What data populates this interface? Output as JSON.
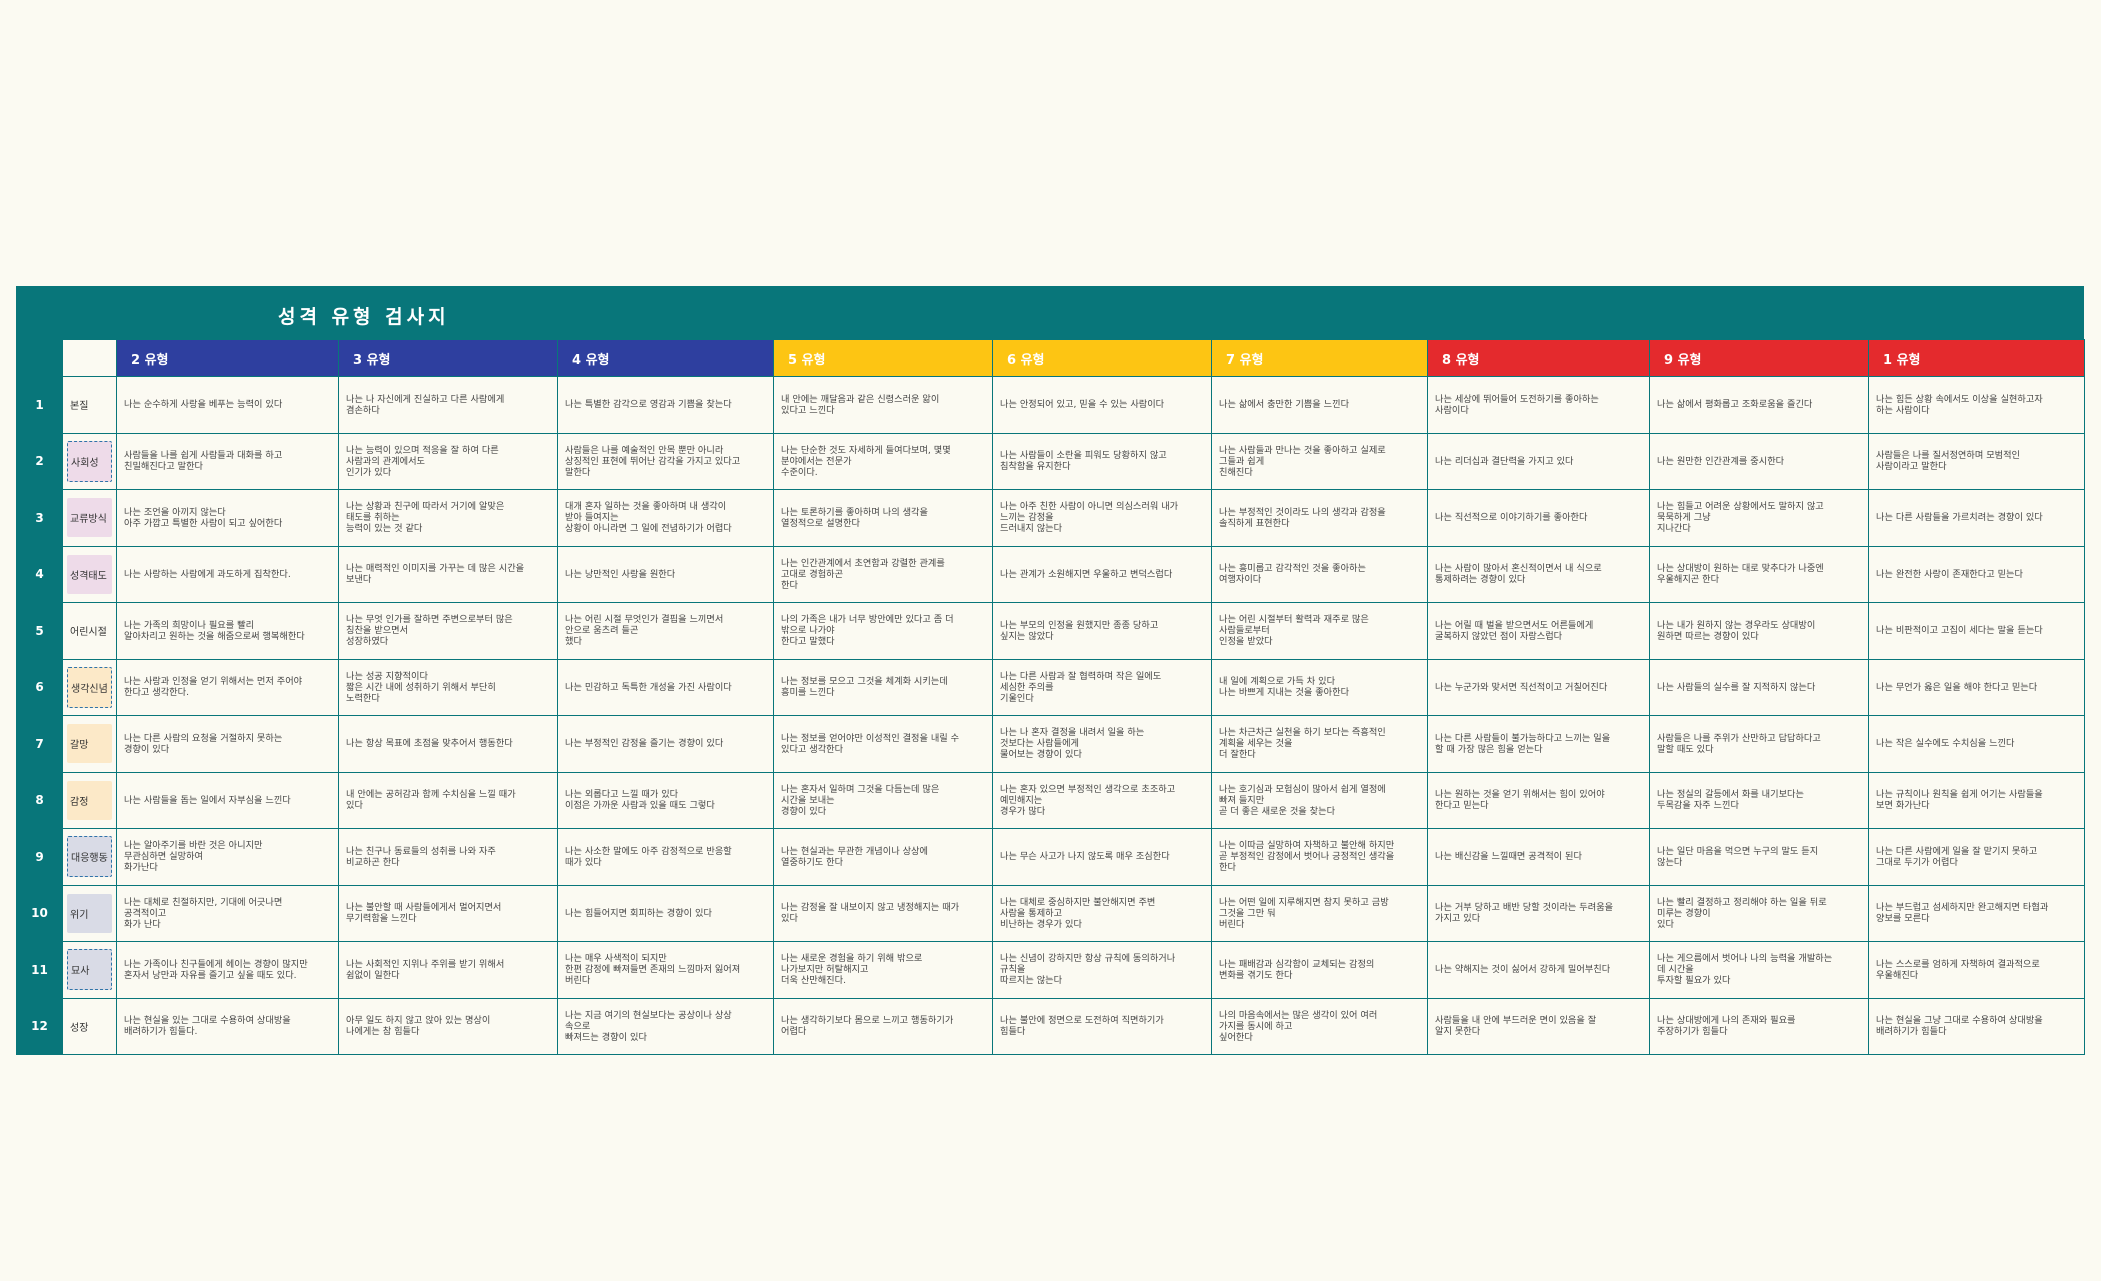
{
  "title": "성격 유형 검사지",
  "columns": [
    {
      "label": "2 유형",
      "color": "#2e3f9f"
    },
    {
      "label": "3 유형",
      "color": "#2e3f9f"
    },
    {
      "label": "4 유형",
      "color": "#2e3f9f"
    },
    {
      "label": "5 유형",
      "color": "#fdc513"
    },
    {
      "label": "6 유형",
      "color": "#fdc513"
    },
    {
      "label": "7 유형",
      "color": "#fdc513"
    },
    {
      "label": "8 유형",
      "color": "#e42a2d"
    },
    {
      "label": "9 유형",
      "color": "#e42a2d"
    },
    {
      "label": "1 유형",
      "color": "#e42a2d"
    }
  ],
  "rows": [
    {
      "num": "1",
      "category": "본질",
      "cells": [
        "나는 순수하게 사랑을 베푸는 능력이 있다",
        " 나는 나 자신에게 진실하고 다른 사람에게 \n겸손하다",
        "나는 특별한 감각으로 영감과 기쁨을 찾는다",
        " 내 안에는 깨달음과 같은 신령스러운 앎이 \n있다고 느낀다",
        "나는 안정되어 있고, 믿을 수 있는 사람이다",
        "나는 삶에서 충만한 기쁨을 느낀다",
        " 나는 세상에 뛰어들어 도전하기를 좋아하는 \n사람이다",
        "나는 삶에서 평화롭고 조화로움을 즐긴다",
        " 나는 힘든 상황 속에서도 이상을 실현하고자 \n하는 사람이다"
      ]
    },
    {
      "num": "2",
      "category": "사회성",
      "cells": [
        " 사람들을 나를 쉽게 사람들과 대화를 하고 \n친밀해진다고 말한다",
        " 나는 능력이 있으며 적응을 잘 하여 다른 \n사람과의 관계에서도 \n인기가 있다",
        " 사람들은 나를 예술적인 안목 뿐만 아니라 \n상징적인 표현에 뛰어난 감각을 가지고 있다고 \n말한다",
        " 나는 단순한 것도 자세하게 들여다보며, 몇몇 \n분야에서는 전문가 \n수준이다.",
        " 나는 사람들이 소란을 피워도 당황하지 않고 \n침착함을 유지한다",
        " 나는 사람들과 만나는 것을 좋아하고 실제로 \n그들과 쉽게 \n친해진다",
        "나는 리더십과 결단력을 가지고 있다",
        "나는 원만한 인간관계를 중시한다",
        " 사람들은 나를 질서정연하며 모범적인 \n사람이라고 말한다"
      ]
    },
    {
      "num": "3",
      "category": "교류방식",
      "cells": [
        "나는 조언을 아끼지 않는다\n아주 가깝고 특별한 사람이 되고 싶어한다",
        " 나는 상황과 친구에 따라서 거기에 알맞은 \n태도를 취하는 \n능력이 있는 것 같다",
        " 대개 혼자 일하는 것을 좋아하며 내 생각이 \n받아 들여지는 \n상황이 아니라면 그 일에 전념하기가 어렵다",
        " 나는 토론하기를 좋아하며 나의 생각을 \n열정적으로 설명한다",
        " 나는 아주 친한 사람이 아니면 의심스러워 내가 \n느끼는 감정을 \n드러내지 않는다",
        " 나는 부정적인 것이라도 나의 생각과 감정을 \n솔직하게 표현한다",
        "나는 직선적으로 이야기하기를 좋아한다",
        " 나는 힘들고 어려운 상황에서도 말하지 않고 \n묵묵하게 그냥 \n지나간다",
        "나는 다른 사람들을 가르치려는 경향이 있다"
      ]
    },
    {
      "num": "4",
      "category": "성격태도",
      "cells": [
        "나는 사랑하는 사람에게 과도하게 집착한다.",
        " 나는 매력적인 이미지를 가꾸는 데 많은 시간을 \n보낸다",
        "나는 낭만적인 사랑을 원한다",
        " 나는 인간관계에서 초연함과 강렬한 관계를 \n고대로 경험하곤 \n한다",
        "나는 관계가 소원해지면 우울하고 변덕스럽다",
        " 나는 흥미롭고 감각적인 것을 좋아하는 \n여행자이다",
        " 나는 사람이 많아서 혼신적이면서 내 식으로 \n통제하려는 경향이 있다",
        " 나는 상대방이 원하는 대로 맞추다가 나중엔 \n우울해지곤 한다",
        "나는 완전한 사랑이 존재한다고 믿는다"
      ]
    },
    {
      "num": "5",
      "category": "어린시절",
      "cells": [
        "나는 가족의 희망이나 필요를 빨리 \n알아차리고 원하는 것을 해줌으로써 행복해한다",
        " 나는 무엇 인가를 잘하면 주변으로부터 많은 \n칭찬을 받으면서 \n성장하였다",
        " 나는 어린 시절 무엇인가 결핍을 느끼면서 \n안으로 움츠려 들곤 \n했다",
        " 나의 가족은 내가 너무 방안에만 있다고 좀 더 \n밖으로 나가야 \n한다고 말했다",
        " 나는 부모의 인정을 원했지만 종종 당하고 \n싶지는 않았다",
        " 나는 어린 시절부터 활력과 재주로 많은 \n사람들로부터 \n인정을 받았다",
        " 나는 어릴 때 벌을 받으면서도 어른들에게 \n굴복하지 않았던 점이 자랑스럽다",
        " 나는 내가 원하지 않는 경우라도 상대방이 \n원하면 따르는 경향이 있다",
        "나는 비판적이고 고집이 세다는 말을 듣는다"
      ]
    },
    {
      "num": "6",
      "category": "생각신념",
      "cells": [
        "나는 사랑과 인정을 얻기 위해서는 먼저 주어야 \n한다고 생각한다.",
        " 나는 성공 지향적이다 \n짧은 시간 내에 성취하기 위해서 부단히 \n노력한다",
        "나는 민감하고 독특한 개성을 가진 사람이다",
        "나는 정보를 모으고 그것을 체계화 시키는데 \n흥미를 느낀다",
        " 나는 다른 사람과 잘 협력하며 작은 일에도 \n세심한 주의를 \n기울인다",
        " 내 일에 계획으로 가득 차 있다 \n나는 바쁘게 지내는 것을 좋아한다",
        "나는 누군가와 맞서면 직선적이고 거칠어진다",
        " 나는 사람들의 실수를 잘 지적하지 않는다",
        "나는 무언가 옳은 일을 해야 한다고 믿는다"
      ]
    },
    {
      "num": "7",
      "category": "갈망",
      "cells": [
        "나는 다른 사람의 요청을 거절하지 못하는 \n경향이 있다",
        " 나는 항상 목표에 초점을 맞추어서 행동한다",
        "나는 부정적인 감정을 즐기는 경향이 있다",
        "나는 정보를 얻어야만 이성적인 결정을 내릴 수 \n있다고 생각한다",
        " 나는 나 혼자 결정을 내려서 일을 하는 \n것보다는 사람들에게 \n물어보는 경향이 있다",
        " 나는 차근차근 실천을 하기 보다는 즉흥적인 \n계획을 세우는 것을 \n더 잘한다",
        " 나는 다른 사람들이 불가능하다고 느끼는 일을 \n할 때 가장 많은 힘을 얻는다",
        " 사람들은 나를 주위가 산만하고 답답하다고 \n말할 때도 있다",
        "나는 작은 실수에도 수치심을 느낀다"
      ]
    },
    {
      "num": "8",
      "category": "감정",
      "cells": [
        "나는 사람들을 돕는 일에서 자부심을 느낀다",
        " 내 안에는 공허감과 함께 수치심을 느낄 때가 \n있다",
        " 나는 외롭다고 느낄 때가 있다 \n이점은 가까운 사람과 있을 때도 그렇다",
        " 나는 혼자서 일하며 그것을 다듬는데 많은 \n시간을 보내는 \n경향이 있다",
        " 나는 혼자 있으면 부정적인 생각으로 초조하고 \n예민해지는 \n경우가 많다",
        " 나는 호기심과 모험심이 많아서 쉽게 열정에 \n빠져 들지만 \n곧 더 좋은 새로운 것을 찾는다",
        " 나는 원하는 것을 얻기 위해서는 힘이 있어야 \n한다고 믿는다",
        " 나는 정실의 갈등에서 화를 내기보다는 \n두목감을 자주 느낀다",
        " 나는 규칙이나 원칙을 쉽게 어기는 사람들을 \n보면 화가난다"
      ]
    },
    {
      "num": "9",
      "category": "대응행동",
      "cells": [
        "나는 알아주기를 바란 것은 아니지만 \n무관심하면 실망하여 \n화가난다",
        " 나는 친구나 동료들의 성취를 나와 자주 \n비교하곤 한다",
        " 나는 사소한 말에도 아주 감정적으로 반응할 \n때가 있다",
        " 나는 현실과는 무관한 개념이나 상상에 \n열중하기도 한다",
        "나는 무슨 사고가 나지 않도록 매우 조심한다",
        " 나는 이따금 실망하여 자책하고 불안해 하지만 \n곧 부정적인 감정에서 벗어나 긍정적인 생각을 \n한다",
        "나는 배신감을 느낄때면 공격적이 된다",
        " 나는 일단 마음을 먹으면 누구의 말도 듣지 \n않는다",
        " 나는 다른 사람에게 일을 잘 맡기지 못하고 \n그대로 두기가 어렵다"
      ]
    },
    {
      "num": "10",
      "category": "위기",
      "cells": [
        "나는 대체로 친절하지만, 기대에 어긋나면 \n공격적이고 \n화가 난다",
        " 나는 불안할 때 사람들에게서 멀어지면서 \n무기력함을 느낀다",
        "나는 힘들어지면 회피하는 경향이 있다",
        "나는 감정을 잘 내보이지 않고 냉정해지는 때가 \n있다",
        " 나는 대체로 중심하지만 불안해지면 주변 \n사람을 통제하고 \n비난하는 경우가 있다",
        " 나는 어떤 일에 지루해지면 참지 못하고 금방 \n그것을 그만 둬 \n버린다",
        " 나는 거부 당하고 배반 당할 것이라는 두려움을 \n가지고 있다",
        " 나는 빨리 결정하고 정리해야 하는 일을 뒤로 \n미루는 경향이 \n있다",
        " 나는 부드럽고 섬세하지만 완고해지면 타협과 \n양보를 모른다"
      ]
    },
    {
      "num": "11",
      "category": "묘사",
      "cells": [
        "나는 가족이나 친구들에게 헤이는 경향이 많지만 \n혼자서 낭만과 자유를 즐기고 싶을 때도 있다.",
        " 나는 사회적인 지위나 주위를 받기 위해서 \n쉼없이 일한다",
        " 나는 매우 사색적이 되지만 \n한편 감정에 빠져들면 존재의 느낌마저 잃어져 \n버린다",
        " 나는 새로운 경험을 하기 위해 밖으로 \n나가보지만 허탈해지고 \n더욱 산만해진다.",
        " 나는 신념이 강하지만 항상 규칙에 동의하거나 \n규칙을 \n따르지는 않는다",
        " 나는 패배감과 심각함이 교체되는 감정의 \n변화를 겪기도 한다",
        "나는 약해지는 것이 싫어서 강하게 밀어부친다",
        " 나는 게으름에서 벗어나 나의 능력을 개발하는 \n데 시간을 \n투자할 필요가 있다",
        " 나는 스스로를 엄하게 자책하여 결과적으로 \n우울해진다"
      ]
    },
    {
      "num": "12",
      "category": "성장",
      "cells": [
        "나는 현실을 있는 그대로 수용하여 상대방을 \n배려하기가 힘들다.",
        " 아무 일도 하지 않고 앉아 있는 명상이 \n나에게는 참 힘들다",
        " 나는 지금 여기의 현실보다는 공상이나 상상 \n속으로 \n빠져드는 경향이 있다",
        " 나는 생각하기보다 몸으로 느끼고 행동하기가 \n어렵다",
        " 나는 불안에 정면으로 도전하여 직면하기가 \n힘들다",
        " 나의 마음속에서는 많은 생각이 있어 여러 \n가지를 동시에 하고 \n싶어한다",
        " 사람들을 내 안에 부드러운 면이 있음을 잘 \n알지 못한다",
        " 나는 상대방에게 나의 존재와 필요를 \n주장하기가 힘들다",
        " 나는 현실을 그냥 그대로 수용하여 상대방을 \n배려하기가 힘들다"
      ]
    }
  ]
}
